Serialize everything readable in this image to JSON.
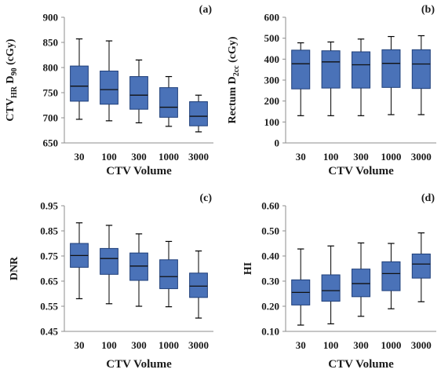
{
  "chart_data": [
    {
      "type": "box",
      "panel_label": "(a)",
      "xlabel": "CTV Volume",
      "ylabel_main": "CTV",
      "ylabel_sub1": "HR",
      "ylabel_mid": " D",
      "ylabel_sub2": "90",
      "ylabel_tail": " (cGy)",
      "ylim": [
        650,
        900
      ],
      "yticks": [
        "650",
        "700",
        "750",
        "800",
        "850",
        "900"
      ],
      "categories": [
        "30",
        "100",
        "300",
        "1000",
        "3000"
      ],
      "boxes": [
        {
          "min": 697,
          "q1": 733,
          "median": 763,
          "q3": 803,
          "max": 857
        },
        {
          "min": 694,
          "q1": 727,
          "median": 756,
          "q3": 793,
          "max": 853
        },
        {
          "min": 690,
          "q1": 717,
          "median": 745,
          "q3": 782,
          "max": 815
        },
        {
          "min": 683,
          "q1": 701,
          "median": 721,
          "q3": 760,
          "max": 782
        },
        {
          "min": 672,
          "q1": 684,
          "median": 703,
          "q3": 732,
          "max": 745
        }
      ],
      "box_color": "#4a72b8",
      "grid": false
    },
    {
      "type": "box",
      "panel_label": "(b)",
      "xlabel": "CTV Volume",
      "ylabel_main": "Rectum D",
      "ylabel_sub1": "2cc",
      "ylabel_mid": "",
      "ylabel_sub2": "",
      "ylabel_tail": " (cGy)",
      "ylim": [
        0,
        600
      ],
      "yticks": [
        "0",
        "100",
        "200",
        "300",
        "400",
        "500",
        "600"
      ],
      "categories": [
        "30",
        "100",
        "300",
        "1000",
        "3000"
      ],
      "boxes": [
        {
          "min": 130,
          "q1": 258,
          "median": 378,
          "q3": 443,
          "max": 478
        },
        {
          "min": 130,
          "q1": 262,
          "median": 387,
          "q3": 440,
          "max": 482
        },
        {
          "min": 130,
          "q1": 262,
          "median": 373,
          "q3": 435,
          "max": 496
        },
        {
          "min": 135,
          "q1": 265,
          "median": 380,
          "q3": 445,
          "max": 508
        },
        {
          "min": 135,
          "q1": 260,
          "median": 377,
          "q3": 445,
          "max": 512
        }
      ],
      "box_color": "#4a72b8",
      "grid": false
    },
    {
      "type": "box",
      "panel_label": "(c)",
      "xlabel": "CTV Volume",
      "ylabel_main": "DNR",
      "ylabel_sub1": "",
      "ylabel_mid": "",
      "ylabel_sub2": "",
      "ylabel_tail": "",
      "ylim": [
        0.45,
        0.95
      ],
      "yticks": [
        "0.45",
        "0.55",
        "0.65",
        "0.75",
        "0.85",
        "0.95"
      ],
      "categories": [
        "30",
        "100",
        "300",
        "1000",
        "3000"
      ],
      "boxes": [
        {
          "min": 0.58,
          "q1": 0.705,
          "median": 0.752,
          "q3": 0.8,
          "max": 0.882
        },
        {
          "min": 0.56,
          "q1": 0.677,
          "median": 0.74,
          "q3": 0.78,
          "max": 0.872
        },
        {
          "min": 0.55,
          "q1": 0.653,
          "median": 0.71,
          "q3": 0.762,
          "max": 0.838
        },
        {
          "min": 0.548,
          "q1": 0.62,
          "median": 0.668,
          "q3": 0.735,
          "max": 0.808
        },
        {
          "min": 0.503,
          "q1": 0.585,
          "median": 0.63,
          "q3": 0.682,
          "max": 0.77
        }
      ],
      "box_color": "#4a72b8",
      "grid": false
    },
    {
      "type": "box",
      "panel_label": "(d)",
      "xlabel": "CTV Volume",
      "ylabel_main": "HI",
      "ylabel_sub1": "",
      "ylabel_mid": "",
      "ylabel_sub2": "",
      "ylabel_tail": "",
      "ylim": [
        0.1,
        0.6
      ],
      "yticks": [
        "0.10",
        "0.20",
        "0.30",
        "0.40",
        "0.50",
        "0.60"
      ],
      "categories": [
        "30",
        "100",
        "300",
        "1000",
        "3000"
      ],
      "boxes": [
        {
          "min": 0.125,
          "q1": 0.205,
          "median": 0.255,
          "q3": 0.305,
          "max": 0.428
        },
        {
          "min": 0.13,
          "q1": 0.22,
          "median": 0.262,
          "q3": 0.325,
          "max": 0.44
        },
        {
          "min": 0.16,
          "q1": 0.238,
          "median": 0.29,
          "q3": 0.348,
          "max": 0.452
        },
        {
          "min": 0.19,
          "q1": 0.262,
          "median": 0.33,
          "q3": 0.377,
          "max": 0.45
        },
        {
          "min": 0.218,
          "q1": 0.312,
          "median": 0.368,
          "q3": 0.408,
          "max": 0.492
        }
      ],
      "box_color": "#4a72b8",
      "grid": false
    }
  ]
}
